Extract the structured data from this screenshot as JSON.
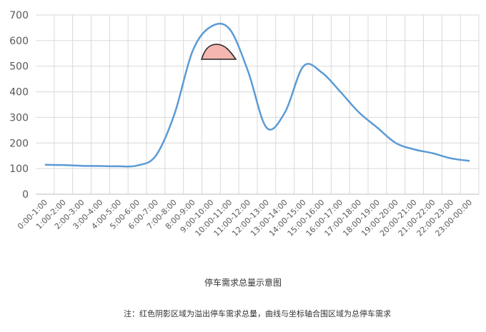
{
  "chart_data": {
    "type": "line",
    "title": "停车需求总量示意图",
    "note": "注：红色阴影区域为溢出停车需求总量，曲线与坐标轴合围区域为总停车需求",
    "categories": [
      "0:00-1:00",
      "1:00-2:00",
      "2:00-3:00",
      "3:00-4:00",
      "4:00-5:00",
      "5:00-6:00",
      "6:00-7:00",
      "7:00-8:00",
      "8:00-9:00",
      "9:00-10:00",
      "10:00-11:00",
      "11:00-12:00",
      "12:00-13:00",
      "13:00-14:00",
      "14:00-15:00",
      "15:00-16:00",
      "16:00-17:00",
      "17:00-18:00",
      "18:00-19:00",
      "19:00-20:00",
      "20:00-21:00",
      "21:00-22:00",
      "22:00-23:00",
      "23:00-00:00"
    ],
    "values": [
      115,
      114,
      111,
      110,
      109,
      112,
      150,
      310,
      560,
      655,
      645,
      480,
      260,
      320,
      500,
      475,
      400,
      320,
      260,
      200,
      175,
      160,
      140,
      130
    ],
    "color": "#5b9bd5",
    "ylim": [
      0,
      700
    ],
    "yticks": [
      0,
      100,
      200,
      300,
      400,
      500,
      600,
      700
    ],
    "grid": true
  }
}
